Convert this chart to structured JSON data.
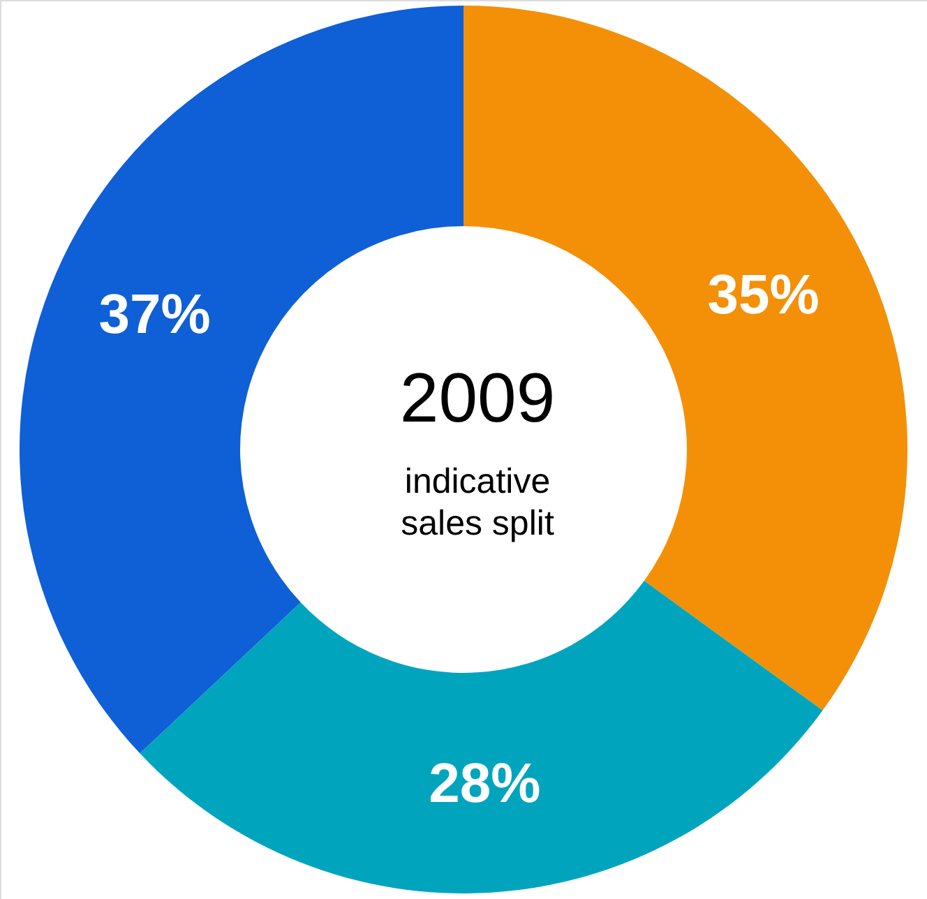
{
  "chart_data": {
    "type": "donut",
    "title": "2009",
    "subtitle": "indicative sales split",
    "categories": [
      null,
      null,
      null
    ],
    "values": [
      35,
      28,
      37
    ],
    "value_labels": [
      "35%",
      "28%",
      "37%"
    ],
    "colors": [
      "#f39008",
      "#00a5bd",
      "#0f5fd6"
    ],
    "legend": false
  }
}
